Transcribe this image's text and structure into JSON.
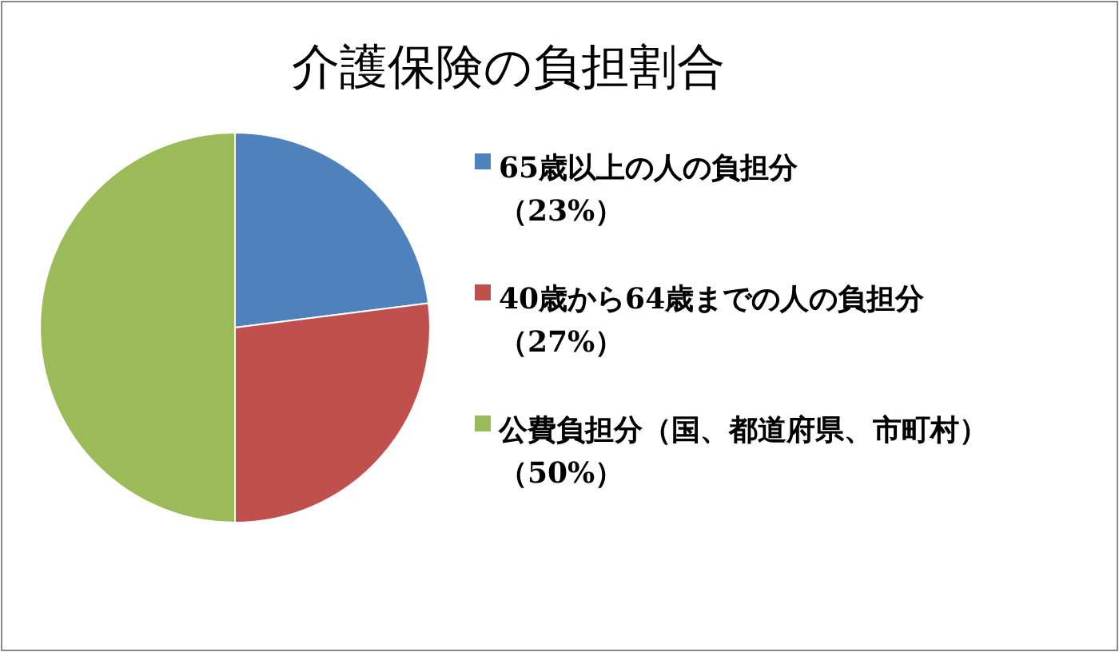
{
  "chart_data": {
    "type": "pie",
    "title": "介護保険の負担割合",
    "categories": [
      "65歳以上の人の負担分",
      "40歳から64歳までの人の負担分",
      "公費負担分（国、都道府県、市町村）"
    ],
    "values": [
      23,
      27,
      50
    ],
    "value_labels": [
      "（23%）",
      "（27%）",
      "（50%）"
    ],
    "colors": [
      "#4f81bd",
      "#c0504d",
      "#9bbb59"
    ],
    "legend": "right"
  }
}
